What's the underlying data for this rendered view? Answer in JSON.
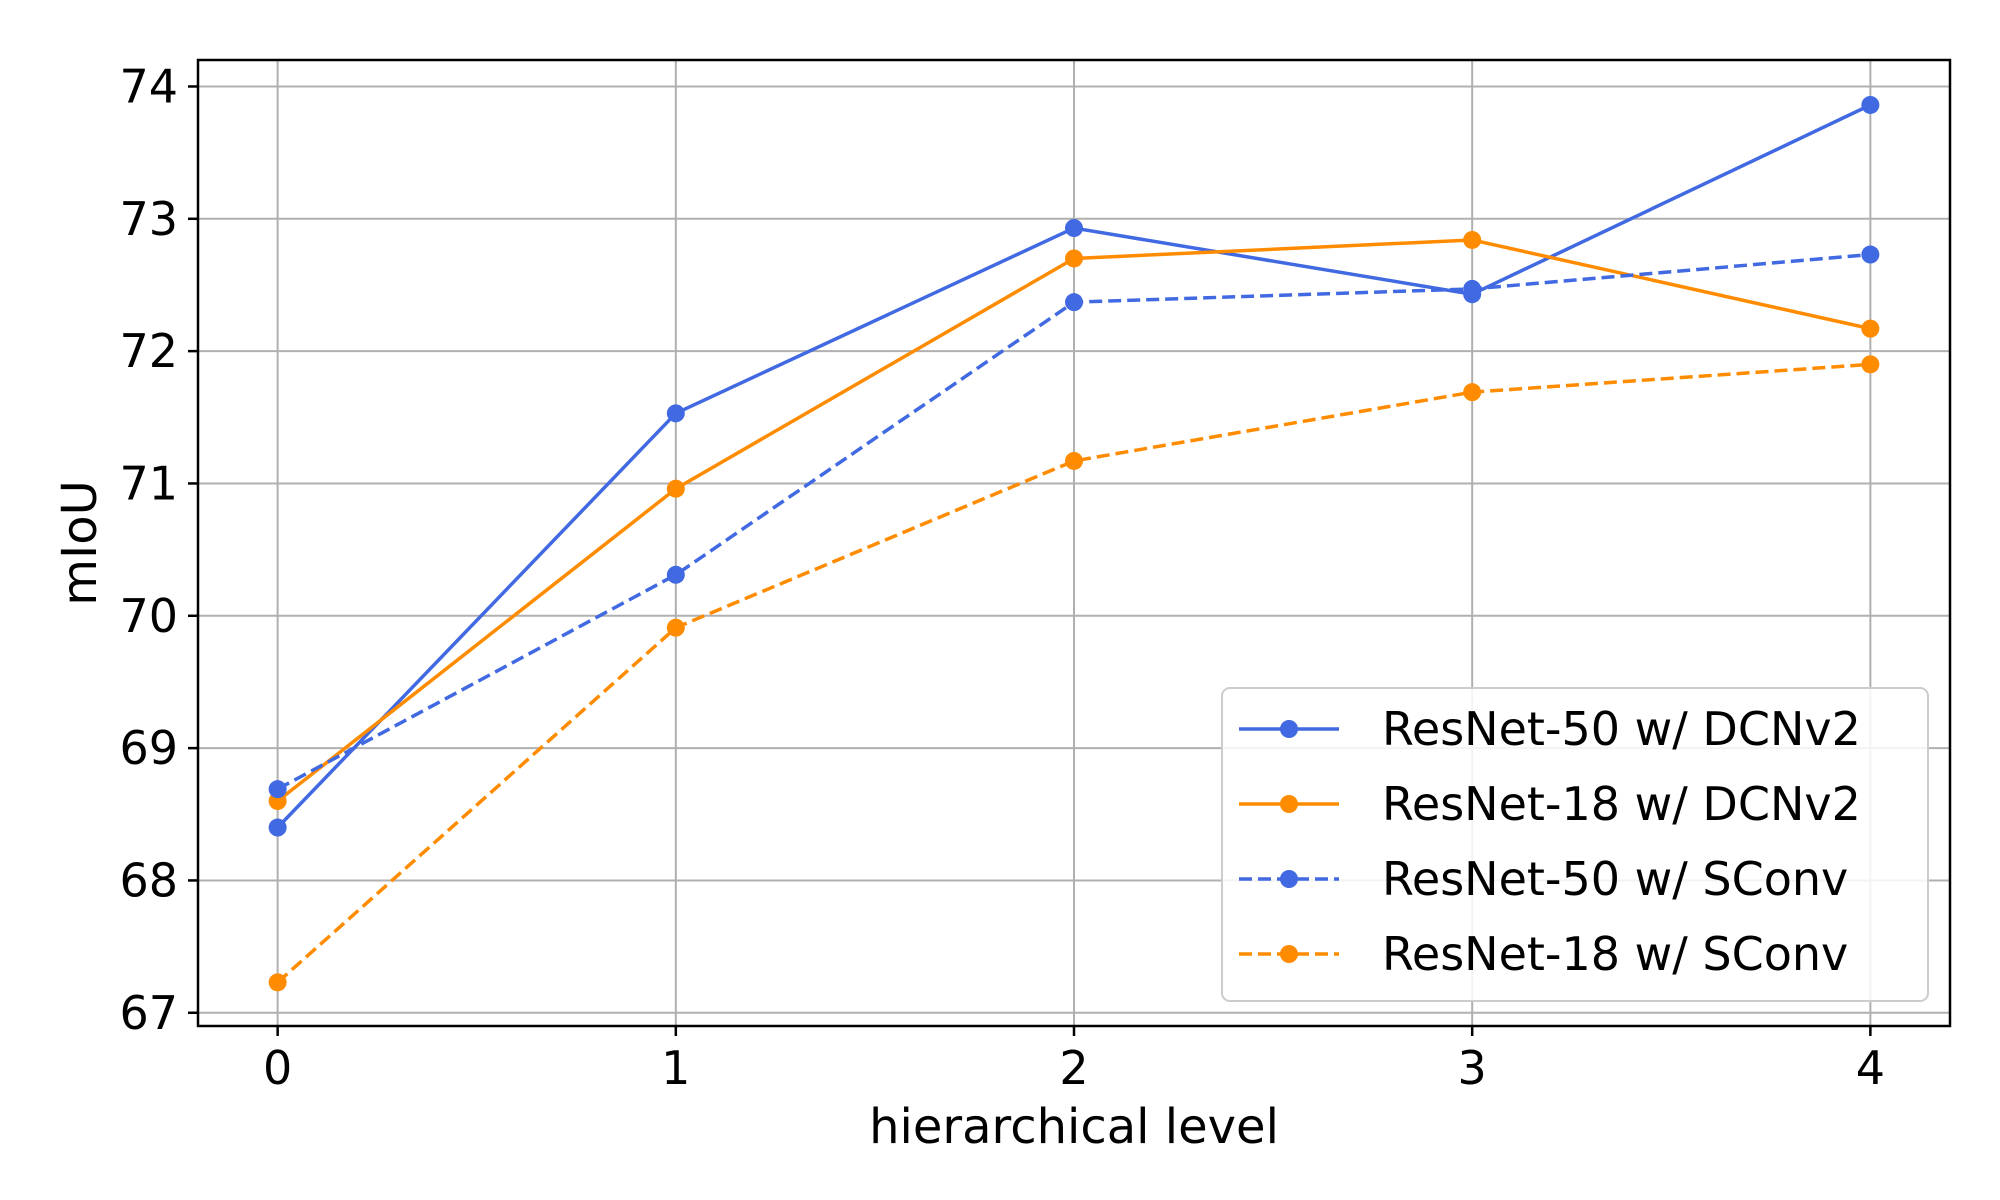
{
  "chart_data": {
    "type": "line",
    "xlabel": "hierarchical level",
    "ylabel": "mIoU",
    "x": [
      0,
      1,
      2,
      3,
      4
    ],
    "xlim": [
      -0.2,
      4.2
    ],
    "ylim": [
      66.9,
      74.2
    ],
    "xticks": [
      0,
      1,
      2,
      3,
      4
    ],
    "yticks": [
      67,
      68,
      69,
      70,
      71,
      72,
      73,
      74
    ],
    "grid": true,
    "legend_position": "lower-right",
    "series": [
      {
        "name": "ResNet-50 w/ DCNv2",
        "color": "#4169E1",
        "linestyle": "solid",
        "marker": "circle",
        "values": [
          68.4,
          71.53,
          72.93,
          72.43,
          73.86
        ]
      },
      {
        "name": "ResNet-18 w/ DCNv2",
        "color": "#FF8C00",
        "linestyle": "solid",
        "marker": "circle",
        "values": [
          68.6,
          70.96,
          72.7,
          72.84,
          72.17
        ]
      },
      {
        "name": "ResNet-50 w/ SConv",
        "color": "#4169E1",
        "linestyle": "dashed",
        "marker": "circle",
        "values": [
          68.69,
          70.31,
          72.37,
          72.47,
          72.73
        ]
      },
      {
        "name": "ResNet-18 w/ SConv",
        "color": "#FF8C00",
        "linestyle": "dashed",
        "marker": "circle",
        "values": [
          67.23,
          69.91,
          71.17,
          71.69,
          71.9
        ]
      }
    ]
  }
}
